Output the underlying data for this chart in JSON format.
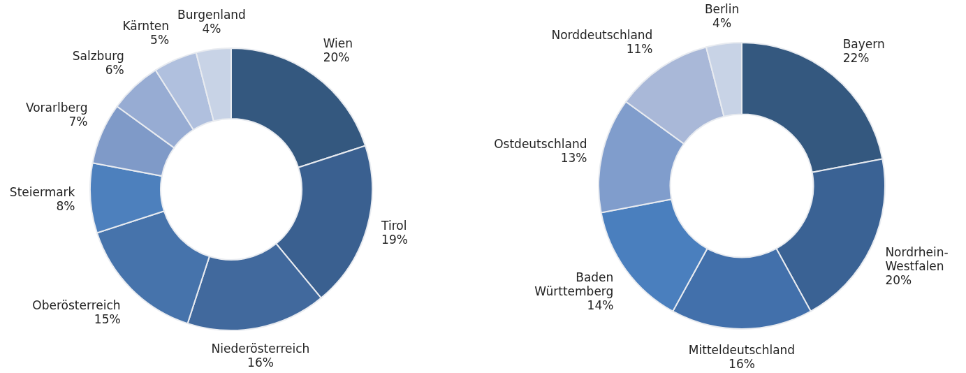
{
  "chart_data": [
    {
      "type": "donut",
      "categories": [
        "Wien",
        "Tirol",
        "Niederösterreich",
        "Oberösterreich",
        "Steiermark",
        "Vorarlberg",
        "Salzburg",
        "Kärnten",
        "Burgenland"
      ],
      "values": [
        20,
        19,
        16,
        15,
        8,
        7,
        6,
        5,
        4
      ],
      "value_labels": [
        "20%",
        "19%",
        "16%",
        "15%",
        "8%",
        "7%",
        "6%",
        "5%",
        "4%"
      ],
      "colors": [
        "#34587f",
        "#3a6090",
        "#41699d",
        "#4673ab",
        "#4d80bd",
        "#7f9ac8",
        "#97acd3",
        "#b0c0de",
        "#c8d3e6"
      ]
    },
    {
      "type": "donut",
      "categories": [
        "Bayern",
        "Nordrhein-Westfalen",
        "Mitteldeutschland",
        "Baden Württemberg",
        "Ostdeutschland",
        "Norddeutschland",
        "Berlin"
      ],
      "values": [
        22,
        20,
        16,
        14,
        13,
        11,
        4
      ],
      "value_labels": [
        "22%",
        "20%",
        "16%",
        "14%",
        "13%",
        "11%",
        "4%"
      ],
      "colors": [
        "#34587f",
        "#3a6294",
        "#4270ab",
        "#4a7fbe",
        "#809dcc",
        "#a9b8d8",
        "#c8d3e6"
      ]
    }
  ]
}
